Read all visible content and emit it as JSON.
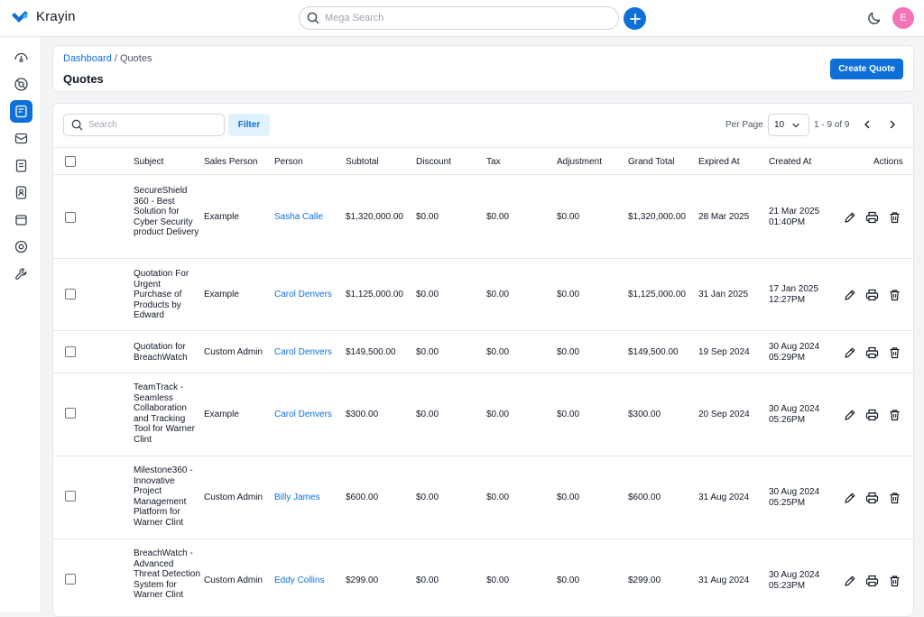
{
  "app": {
    "name": "Krayin"
  },
  "header": {
    "search_placeholder": "Mega Search",
    "avatar_initial": "E"
  },
  "breadcrumb": {
    "home": "Dashboard",
    "separator": " / ",
    "current": "Quotes"
  },
  "page": {
    "title": "Quotes",
    "create_label": "Create Quote"
  },
  "toolbar": {
    "search_placeholder": "Search",
    "filter_label": "Filter",
    "per_page_label": "Per Page",
    "per_page_value": "10",
    "page_info": "1 - 9 of 9"
  },
  "table": {
    "headers": {
      "subject": "Subject",
      "sales_person": "Sales Person",
      "person": "Person",
      "subtotal": "Subtotal",
      "discount": "Discount",
      "tax": "Tax",
      "adjustment": "Adjustment",
      "grand_total": "Grand Total",
      "expired_at": "Expired At",
      "created_at": "Created At",
      "actions": "Actions"
    },
    "rows": [
      {
        "subject": "SecureShield 360 - Best Solution for Cyber Security product Delivery",
        "sales_person": "Example",
        "person": "Sasha Calle",
        "subtotal": "$1,320,000.00",
        "discount": "$0.00",
        "tax": "$0.00",
        "adjustment": "$0.00",
        "grand_total": "$1,320,000.00",
        "expired_at": "28 Mar 2025",
        "created_date": "21 Mar 2025",
        "created_time": "01:40PM"
      },
      {
        "subject": "Quotation For Urgent Purchase of Products by Edward",
        "sales_person": "Example",
        "person": "Carol Denvers",
        "subtotal": "$1,125,000.00",
        "discount": "$0.00",
        "tax": "$0.00",
        "adjustment": "$0.00",
        "grand_total": "$1,125,000.00",
        "expired_at": "31 Jan 2025",
        "created_date": "17 Jan 2025",
        "created_time": "12:27PM"
      },
      {
        "subject": "Quotation for BreachWatch",
        "sales_person": "Custom Admin",
        "person": "Carol Denvers",
        "subtotal": "$149,500.00",
        "discount": "$0.00",
        "tax": "$0.00",
        "adjustment": "$0.00",
        "grand_total": "$149,500.00",
        "expired_at": "19 Sep 2024",
        "created_date": "30 Aug 2024",
        "created_time": "05:29PM"
      },
      {
        "subject": "TeamTrack - Seamless Collaboration and Tracking Tool for Warner Clint",
        "sales_person": "Example",
        "person": "Carol Denvers",
        "subtotal": "$300.00",
        "discount": "$0.00",
        "tax": "$0.00",
        "adjustment": "$0.00",
        "grand_total": "$300.00",
        "expired_at": "20 Sep 2024",
        "created_date": "30 Aug 2024",
        "created_time": "05:26PM"
      },
      {
        "subject": "Milestone360 - Innovative Project Management Platform for Warner Clint",
        "sales_person": "Custom Admin",
        "person": "Billy James",
        "subtotal": "$600.00",
        "discount": "$0.00",
        "tax": "$0.00",
        "adjustment": "$0.00",
        "grand_total": "$600.00",
        "expired_at": "31 Aug 2024",
        "created_date": "30 Aug 2024",
        "created_time": "05:25PM"
      },
      {
        "subject": "BreachWatch - Advanced Threat Detection System for Warner Clint",
        "sales_person": "Custom Admin",
        "person": "Eddy Collins",
        "subtotal": "$299.00",
        "discount": "$0.00",
        "tax": "$0.00",
        "adjustment": "$0.00",
        "grand_total": "$299.00",
        "expired_at": "31 Aug 2024",
        "created_date": "30 Aug 2024",
        "created_time": "05:23PM"
      }
    ]
  },
  "colors": {
    "accent": "#0e6fd9",
    "avatar": "#f472b6",
    "filter_bg": "#e0f2fe"
  }
}
